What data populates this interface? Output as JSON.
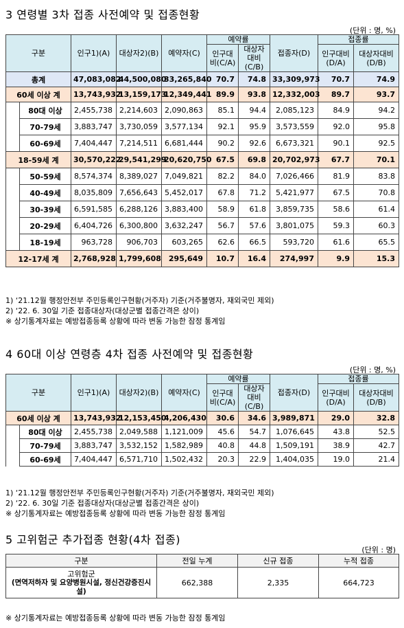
{
  "sec3": {
    "title": "3 연령별 3차 접종 사전예약 및 접종현황",
    "unit": "(단위 : 명, %)",
    "headers": {
      "group": "구분",
      "pop": "인구1)(A)",
      "target": "대상자2)(B)",
      "resv": "예약자(C)",
      "resv_rate": "예약률",
      "resv_pop": "인구대비(C/A)",
      "resv_target": "대상자대비(C/B)",
      "vacc": "접종자(D)",
      "vacc_rate": "접종률",
      "vacc_pop": "인구대비(D/A)",
      "vacc_target": "대상자대비(D/B)"
    },
    "rows": [
      {
        "label": "총계",
        "pop": "47,083,082",
        "target": "44,500,080",
        "resv": "33,265,840",
        "r1": "70.7",
        "r2": "74.8",
        "vacc": "33,309,973",
        "v1": "70.7",
        "v2": "74.9"
      },
      {
        "label": "60세 이상 계",
        "pop": "13,743,932",
        "target": "13,159,173",
        "resv": "12,349,441",
        "r1": "89.9",
        "r2": "93.8",
        "vacc": "12,332,003",
        "v1": "89.7",
        "v2": "93.7"
      },
      {
        "label": "80대 이상",
        "pop": "2,455,738",
        "target": "2,214,603",
        "resv": "2,090,863",
        "r1": "85.1",
        "r2": "94.4",
        "vacc": "2,085,123",
        "v1": "84.9",
        "v2": "94.2"
      },
      {
        "label": "70-79세",
        "pop": "3,883,747",
        "target": "3,730,059",
        "resv": "3,577,134",
        "r1": "92.1",
        "r2": "95.9",
        "vacc": "3,573,559",
        "v1": "92.0",
        "v2": "95.8"
      },
      {
        "label": "60-69세",
        "pop": "7,404,447",
        "target": "7,214,511",
        "resv": "6,681,444",
        "r1": "90.2",
        "r2": "92.6",
        "vacc": "6,673,321",
        "v1": "90.1",
        "v2": "92.5"
      },
      {
        "label": "18-59세 계",
        "pop": "30,570,222",
        "target": "29,541,299",
        "resv": "20,620,750",
        "r1": "67.5",
        "r2": "69.8",
        "vacc": "20,702,973",
        "v1": "67.7",
        "v2": "70.1"
      },
      {
        "label": "50-59세",
        "pop": "8,574,374",
        "target": "8,389,027",
        "resv": "7,049,821",
        "r1": "82.2",
        "r2": "84.0",
        "vacc": "7,026,466",
        "v1": "81.9",
        "v2": "83.8"
      },
      {
        "label": "40-49세",
        "pop": "8,035,809",
        "target": "7,656,643",
        "resv": "5,452,017",
        "r1": "67.8",
        "r2": "71.2",
        "vacc": "5,421,977",
        "v1": "67.5",
        "v2": "70.8"
      },
      {
        "label": "30-39세",
        "pop": "6,591,585",
        "target": "6,288,126",
        "resv": "3,883,400",
        "r1": "58.9",
        "r2": "61.8",
        "vacc": "3,859,735",
        "v1": "58.6",
        "v2": "61.4"
      },
      {
        "label": "20-29세",
        "pop": "6,404,726",
        "target": "6,300,800",
        "resv": "3,632,247",
        "r1": "56.7",
        "r2": "57.6",
        "vacc": "3,801,075",
        "v1": "59.3",
        "v2": "60.3"
      },
      {
        "label": "18-19세",
        "pop": "963,728",
        "target": "906,703",
        "resv": "603,265",
        "r1": "62.6",
        "r2": "66.5",
        "vacc": "593,720",
        "v1": "61.6",
        "v2": "65.5"
      },
      {
        "label": "12-17세 계",
        "pop": "2,768,928",
        "target": "1,799,608",
        "resv": "295,649",
        "r1": "10.7",
        "r2": "16.4",
        "vacc": "274,997",
        "v1": "9.9",
        "v2": "15.3"
      }
    ],
    "notes": [
      "1) ‘21.12월 행정안전부 주민등록인구현황(거주자) 기준(거주불명자, 재외국민 제외)",
      "2) ‘22. 6. 30일 기준 접종대상자(대상군별 접종간격은 상이)",
      "※ 상기통계자료는 예방접종등록 상황에 따라 변동 가능한 잠정 통계임"
    ]
  },
  "sec4": {
    "title": "4 60대 이상 연령층 4차 접종 사전예약 및 접종현황",
    "unit": "(단위 : 명, %)",
    "rows": [
      {
        "label": "60세 이상 계",
        "pop": "13,743,932",
        "target": "12,153,450",
        "resv": "4,206,430",
        "r1": "30.6",
        "r2": "34.6",
        "vacc": "3,989,871",
        "v1": "29.0",
        "v2": "32.8"
      },
      {
        "label": "80대 이상",
        "pop": "2,455,738",
        "target": "2,049,588",
        "resv": "1,121,009",
        "r1": "45.6",
        "r2": "54.7",
        "vacc": "1,076,645",
        "v1": "43.8",
        "v2": "52.5"
      },
      {
        "label": "70-79세",
        "pop": "3,883,747",
        "target": "3,532,152",
        "resv": "1,582,989",
        "r1": "40.8",
        "r2": "44.8",
        "vacc": "1,509,191",
        "v1": "38.9",
        "v2": "42.7"
      },
      {
        "label": "60-69세",
        "pop": "7,404,447",
        "target": "6,571,710",
        "resv": "1,502,432",
        "r1": "20.3",
        "r2": "22.9",
        "vacc": "1,404,035",
        "v1": "19.0",
        "v2": "21.4"
      }
    ],
    "notes": [
      "1) ‘21.12월 행정안전부 주민등록인구현황(거주자) 기준(거주불명자, 재외국민 제외)",
      "2) ‘22. 6. 30일 기준 접종대상자(대상군별 접종간격은 상이)",
      "※ 상기통계자료는 예방접종등록 상황에 따라 변동 가능한 잠정 통계임"
    ]
  },
  "sec5": {
    "title": "5 고위험군 추가접종 현황(4차 접종)",
    "unit": "(단위 : 명)",
    "headers": {
      "group": "구분",
      "prev": "전일 누계",
      "new": "신규 접종",
      "cum": "누적 접종"
    },
    "row": {
      "label1": "고위험군",
      "label2": "(면역저하자 및 요양병원시설, 정신건강증진시설)",
      "prev": "662,388",
      "new": "2,335",
      "cum": "664,723"
    },
    "note": "※ 상기통계자료는 예방접종등록 상황에 따라 변동 가능한 잠정 통계임"
  }
}
